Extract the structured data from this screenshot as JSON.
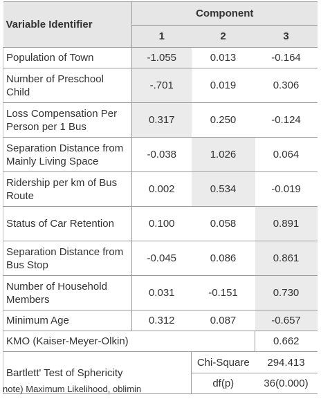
{
  "header": {
    "variable": "Variable Identifier",
    "component": "Component",
    "columns": [
      "1",
      "2",
      "3"
    ]
  },
  "rows": [
    {
      "label": "Population of Town",
      "values": [
        "-1.055",
        "0.013",
        "-0.164"
      ]
    },
    {
      "label": "Number of Preschool Child",
      "values": [
        "-.701",
        "0.019",
        "0.306"
      ]
    },
    {
      "label": "Loss Compensation Per Person per 1 Bus",
      "values": [
        "0.317",
        "0.250",
        "-0.124"
      ]
    },
    {
      "label": "Separation Distance from Mainly Living Space",
      "values": [
        "-0.038",
        "1.026",
        "0.064"
      ]
    },
    {
      "label": "Ridership per km of Bus Route",
      "values": [
        "0.002",
        "0.534",
        "-0.019"
      ]
    },
    {
      "label": "Status of Car Retention",
      "values": [
        "0.100",
        "0.058",
        "0.891"
      ]
    },
    {
      "label": "Separation Distance from Bus Stop",
      "values": [
        "-0.045",
        "0.086",
        "0.861"
      ]
    },
    {
      "label": "Number of Household Members",
      "values": [
        "0.031",
        "-0.151",
        "0.730"
      ]
    },
    {
      "label": "Minimum Age",
      "values": [
        "0.312",
        "0.087",
        "-0.657"
      ]
    }
  ],
  "shaded": [
    [
      true,
      false,
      false
    ],
    [
      true,
      false,
      false
    ],
    [
      true,
      false,
      false
    ],
    [
      false,
      true,
      false
    ],
    [
      false,
      true,
      false
    ],
    [
      false,
      false,
      true
    ],
    [
      false,
      false,
      true
    ],
    [
      false,
      false,
      true
    ],
    [
      false,
      false,
      true
    ]
  ],
  "kmo": {
    "label": "KMO (Kaiser-Meyer-Olkin)",
    "value": "0.662"
  },
  "bartlett": {
    "label": "Bartlett' Test of Sphericity",
    "chi_label": "Chi-Square",
    "chi_value": "294.413",
    "df_label": "df(p)",
    "df_value": "36(0.000)"
  },
  "note": "note) Maximum Likelihood, oblimin"
}
